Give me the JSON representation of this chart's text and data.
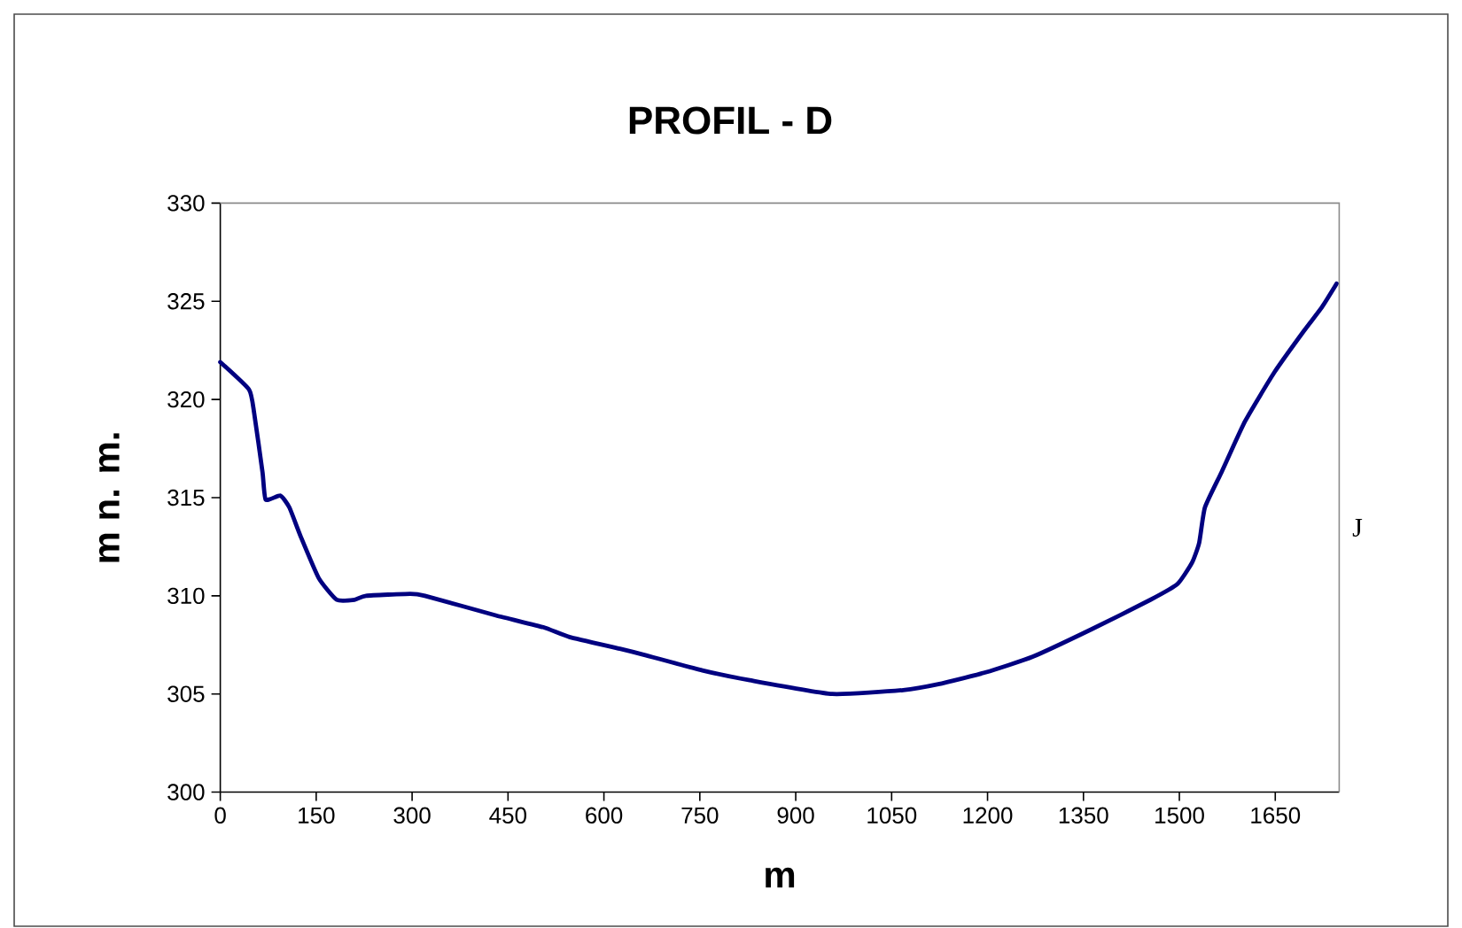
{
  "chart_data": {
    "type": "line",
    "title": "PROFIL - D",
    "xlabel": "m",
    "ylabel": "m n. m.",
    "annotations": [
      "J"
    ],
    "x": [
      0,
      45,
      53,
      66,
      71,
      94,
      108,
      126,
      154,
      182,
      210,
      228,
      297,
      320,
      431,
      505,
      546,
      625,
      662,
      754,
      828,
      957,
      1068,
      1123,
      1197,
      1271,
      1363,
      1455,
      1497,
      1520,
      1531,
      1540,
      1566,
      1603,
      1649,
      1695,
      1723,
      1746
    ],
    "series": [
      {
        "color": "#000080",
        "values": [
          321.9,
          320.5,
          319.3,
          316.3,
          314.9,
          315.1,
          314.5,
          313.0,
          310.9,
          309.8,
          309.8,
          310.0,
          310.1,
          310.0,
          309.0,
          308.4,
          307.9,
          307.3,
          307.0,
          306.2,
          305.7,
          305.0,
          305.2,
          305.5,
          306.1,
          306.9,
          308.3,
          309.8,
          310.6,
          311.7,
          312.7,
          314.5,
          316.3,
          318.9,
          321.4,
          323.5,
          324.7,
          325.9
        ]
      }
    ],
    "xlim": [
      0,
      1750
    ],
    "ylim": [
      300,
      330
    ],
    "xticks": [
      0,
      150,
      300,
      450,
      600,
      750,
      900,
      1050,
      1200,
      1350,
      1500,
      1650
    ],
    "yticks": [
      300,
      305,
      310,
      315,
      320,
      325,
      330
    ],
    "grid": false,
    "marker": "none",
    "line_style": "solid"
  }
}
